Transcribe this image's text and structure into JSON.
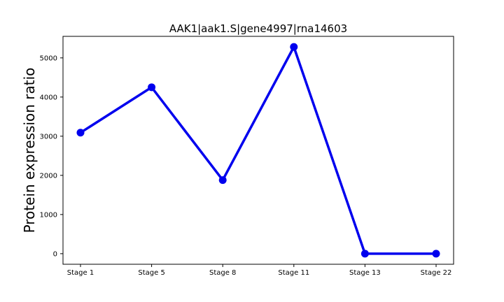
{
  "chart_data": {
    "type": "line",
    "title": "AAK1|aak1.S|gene4997|rna14603",
    "xlabel": "",
    "ylabel": "Protein expression ratio",
    "categories": [
      "Stage 1",
      "Stage 5",
      "Stage 8",
      "Stage 11",
      "Stage 13",
      "Stage 22"
    ],
    "series": [
      {
        "values": [
          3090,
          4250,
          1880,
          5280,
          0,
          0
        ],
        "color": "#0000ee"
      }
    ],
    "yticks": [
      0,
      1000,
      2000,
      3000,
      4000,
      5000
    ],
    "ylim": [
      -270,
      5550
    ],
    "grid": false,
    "legend": "none"
  }
}
